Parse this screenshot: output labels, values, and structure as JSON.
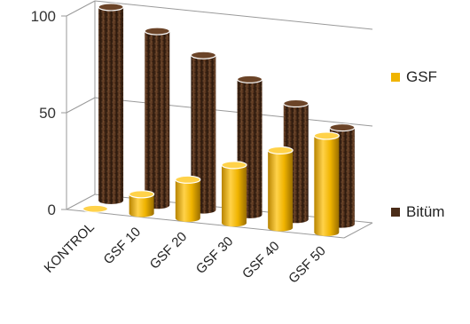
{
  "chart_data": {
    "type": "bar",
    "categories": [
      "KONTROL",
      "GSF 10",
      "GSF 20",
      "GSF 30",
      "GSF 40",
      "GSF 50"
    ],
    "series": [
      {
        "name": "GSF",
        "values": [
          0,
          10,
          20,
          30,
          40,
          50
        ],
        "color": "#F0B400"
      },
      {
        "name": "Bitüm",
        "values": [
          100,
          90,
          80,
          70,
          60,
          50
        ],
        "color": "#5A3520"
      }
    ],
    "yticks": [
      0,
      50,
      100
    ],
    "ylim": [
      0,
      100
    ],
    "grid": true,
    "legend_position": "right",
    "title": "",
    "xlabel": "",
    "ylabel": ""
  }
}
